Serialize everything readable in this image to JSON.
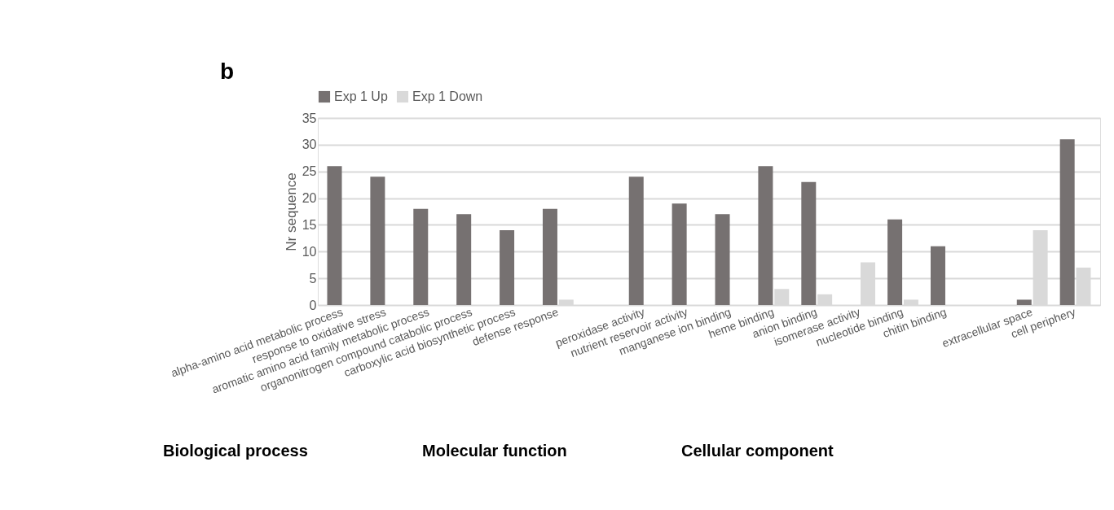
{
  "chart_data": {
    "type": "bar",
    "ylabel": "Nr sequence",
    "categories": [
      "alpha-amino acid metabolic process",
      "response to oxidative stress",
      "aromatic amino acid family metabolic process",
      "organonitrogen compound catabolic process",
      "carboxylic acid biosynthetic process",
      "defense response",
      null,
      "peroxidase activity",
      "nutrient reservoir activity",
      "manganese ion binding",
      "heme binding",
      "anion binding",
      "isomerase activity",
      "nucleotide binding",
      "chitin binding",
      null,
      "extracellular space",
      "cell periphery"
    ],
    "series": [
      {
        "name": "Exp 1 Up",
        "color": "#767171",
        "values": [
          26,
          24,
          18,
          17,
          14,
          18,
          null,
          24,
          19,
          17,
          26,
          23,
          0,
          16,
          11,
          null,
          1,
          31
        ]
      },
      {
        "name": "Exp 1 Down",
        "color": "#d9d9d9",
        "values": [
          0,
          0,
          0,
          0,
          0,
          1,
          null,
          0,
          0,
          0,
          3,
          2,
          8,
          1,
          0,
          null,
          14,
          7
        ]
      }
    ],
    "ylim": [
      0,
      35
    ],
    "yticks": [
      0,
      5,
      10,
      15,
      20,
      25,
      30,
      35
    ],
    "grid": "y",
    "legend": "top",
    "annotations": [
      "b",
      "Biological process",
      "Molecular function",
      "Cellular component"
    ]
  }
}
